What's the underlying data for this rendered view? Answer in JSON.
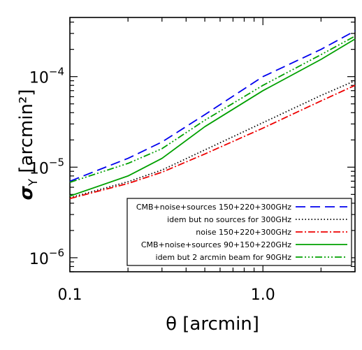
{
  "chart_data": {
    "type": "line",
    "title": "",
    "xlabel": "θ [arcmin]",
    "ylabel": "σ",
    "ylabel_sub": "Y",
    "ylabel_unit": " [arcmin²]",
    "xscale": "log",
    "yscale": "log",
    "xlim": [
      0.1,
      3.0
    ],
    "ylim": [
      7e-07,
      0.00045
    ],
    "xticks": [
      {
        "value": 0.1,
        "label": "0.1"
      },
      {
        "value": 1.0,
        "label": "1.0"
      }
    ],
    "yticks": [
      {
        "value": 1e-06,
        "base": "10",
        "exp": "−6"
      },
      {
        "value": 1e-05,
        "base": "10",
        "exp": "−5"
      },
      {
        "value": 0.0001,
        "base": "10",
        "exp": "−4"
      }
    ],
    "grid": false,
    "legend_position": "bottom-right",
    "series": [
      {
        "name": "CMB+noise+sources 150+220+300GHz",
        "color": "#0000ee",
        "dash": "14,7",
        "x": [
          0.1,
          0.2,
          0.3,
          0.5,
          1.0,
          2.0,
          3.0
        ],
        "y": [
          7e-06,
          1.25e-05,
          1.9e-05,
          3.8e-05,
          0.0001,
          0.0002,
          0.00032
        ]
      },
      {
        "name": "idem but no sources for 300GHz",
        "color": "#000000",
        "dash": "1.5,3",
        "x": [
          0.1,
          0.2,
          0.3,
          0.5,
          1.0,
          2.0,
          3.0
        ],
        "y": [
          4.6e-06,
          6.9e-06,
          9.3e-06,
          1.55e-05,
          3.1e-05,
          6.2e-05,
          9e-05
        ]
      },
      {
        "name": "noise 150+220+300GHz",
        "color": "#ee0000",
        "dash": "10,3,2,3",
        "x": [
          0.1,
          0.2,
          0.3,
          0.5,
          1.0,
          2.0,
          3.0
        ],
        "y": [
          4.5e-06,
          6.6e-06,
          8.8e-06,
          1.4e-05,
          2.7e-05,
          5.4e-05,
          8e-05
        ]
      },
      {
        "name": "CMB+noise+sources 90+150+220GHz",
        "color": "#00a000",
        "dash": "",
        "x": [
          0.1,
          0.2,
          0.3,
          0.5,
          1.0,
          2.0,
          3.0
        ],
        "y": [
          4.8e-06,
          8e-06,
          1.25e-05,
          2.8e-05,
          7e-05,
          0.000155,
          0.00026
        ]
      },
      {
        "name": "idem but 2 arcmin beam for 90GHz",
        "color": "#00a000",
        "dash": "10,3,2,3,2,3,2,3",
        "x": [
          0.1,
          0.2,
          0.3,
          0.5,
          1.0,
          2.0,
          3.0
        ],
        "y": [
          6.8e-06,
          1.1e-05,
          1.6e-05,
          3.3e-05,
          8e-05,
          0.000175,
          0.00028
        ]
      }
    ]
  }
}
